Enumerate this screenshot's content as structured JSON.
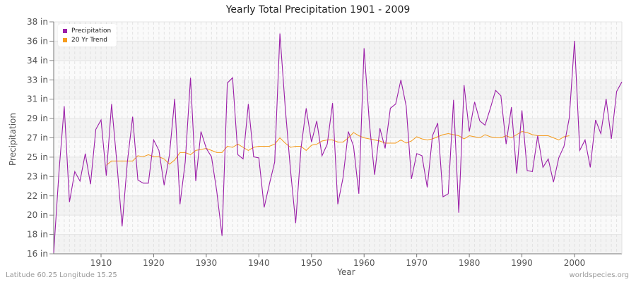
{
  "title": "Yearly Total Precipitation 1901 - 2009",
  "colors": {
    "precipitation": "#9b1fa8",
    "trend": "#f59b1c",
    "grid": "#dddddd",
    "band": "#f3f3f3"
  },
  "footer": {
    "left": "Latitude 60.25 Longitude 15.25",
    "right": "worldspecies.org"
  },
  "chart_data": {
    "type": "line",
    "title": "Yearly Total Precipitation 1901 - 2009",
    "xlabel": "Year",
    "ylabel": "Precipitation",
    "xlim": [
      1901,
      2009
    ],
    "ylim": [
      16,
      38
    ],
    "x_ticks": [
      1910,
      1920,
      1930,
      1940,
      1950,
      1960,
      1970,
      1980,
      1990,
      2000
    ],
    "y_tick_labels": [
      "16 in",
      "18 in",
      "20 in",
      "22 in",
      "23 in",
      "25 in",
      "27 in",
      "29 in",
      "31 in",
      "33 in",
      "34 in",
      "36 in",
      "38 in"
    ],
    "grid": true,
    "legend_position": "top-left",
    "legend": [
      "Precipitation",
      "20 Yr Trend"
    ],
    "series": [
      {
        "name": "Precipitation",
        "x_start": 1901,
        "values": [
          16.1,
          23.7,
          30.0,
          20.9,
          23.8,
          22.9,
          25.5,
          22.6,
          27.8,
          28.7,
          23.4,
          30.2,
          24.7,
          18.6,
          24.7,
          29.0,
          23.0,
          22.7,
          22.7,
          26.8,
          25.8,
          22.5,
          25.4,
          30.7,
          20.7,
          24.7,
          32.7,
          22.9,
          27.6,
          26.0,
          25.2,
          21.9,
          17.7,
          32.2,
          32.7,
          25.4,
          25.0,
          30.2,
          25.2,
          25.1,
          20.4,
          22.6,
          24.7,
          36.9,
          29.9,
          24.0,
          18.9,
          26.0,
          29.8,
          26.6,
          28.6,
          25.3,
          26.4,
          30.3,
          20.7,
          23.2,
          27.6,
          26.2,
          21.7,
          35.5,
          28.4,
          23.5,
          27.9,
          26.0,
          29.8,
          30.2,
          32.5,
          30.0,
          23.1,
          25.5,
          25.3,
          22.3,
          27.2,
          28.4,
          21.4,
          21.7,
          30.6,
          19.9,
          32.0,
          27.6,
          30.4,
          28.6,
          28.2,
          29.8,
          31.5,
          31.0,
          26.4,
          29.9,
          23.6,
          29.6,
          23.9,
          23.8,
          27.2,
          24.2,
          25.0,
          22.8,
          25.1,
          26.2,
          28.9,
          36.2,
          25.8,
          26.8,
          24.2,
          28.7,
          27.4,
          30.7,
          26.9,
          31.4,
          32.3
        ]
      },
      {
        "name": "20 Yr Trend",
        "x_start": 1911,
        "values": [
          24.4,
          24.8,
          24.8,
          24.8,
          24.8,
          24.8,
          25.3,
          25.2,
          25.4,
          25.2,
          25.2,
          25.0,
          24.5,
          24.9,
          25.6,
          25.6,
          25.4,
          25.8,
          25.9,
          26.0,
          25.8,
          25.6,
          25.6,
          26.2,
          26.1,
          26.4,
          26.1,
          25.8,
          26.1,
          26.2,
          26.2,
          26.2,
          26.4,
          27.0,
          26.5,
          26.1,
          26.2,
          26.2,
          25.8,
          26.3,
          26.4,
          26.7,
          26.8,
          26.8,
          26.6,
          26.6,
          27.0,
          27.5,
          27.2,
          27.0,
          26.9,
          26.8,
          26.7,
          26.5,
          26.5,
          26.5,
          26.8,
          26.5,
          26.7,
          27.1,
          26.9,
          26.8,
          26.9,
          27.1,
          27.3,
          27.4,
          27.3,
          27.2,
          26.9,
          27.2,
          27.1,
          27.0,
          27.3,
          27.1,
          27.0,
          27.0,
          27.2,
          27.0,
          27.3,
          27.6,
          27.5,
          27.3,
          27.2,
          27.2,
          27.2,
          27.0,
          26.8,
          27.1,
          27.2
        ]
      }
    ]
  }
}
